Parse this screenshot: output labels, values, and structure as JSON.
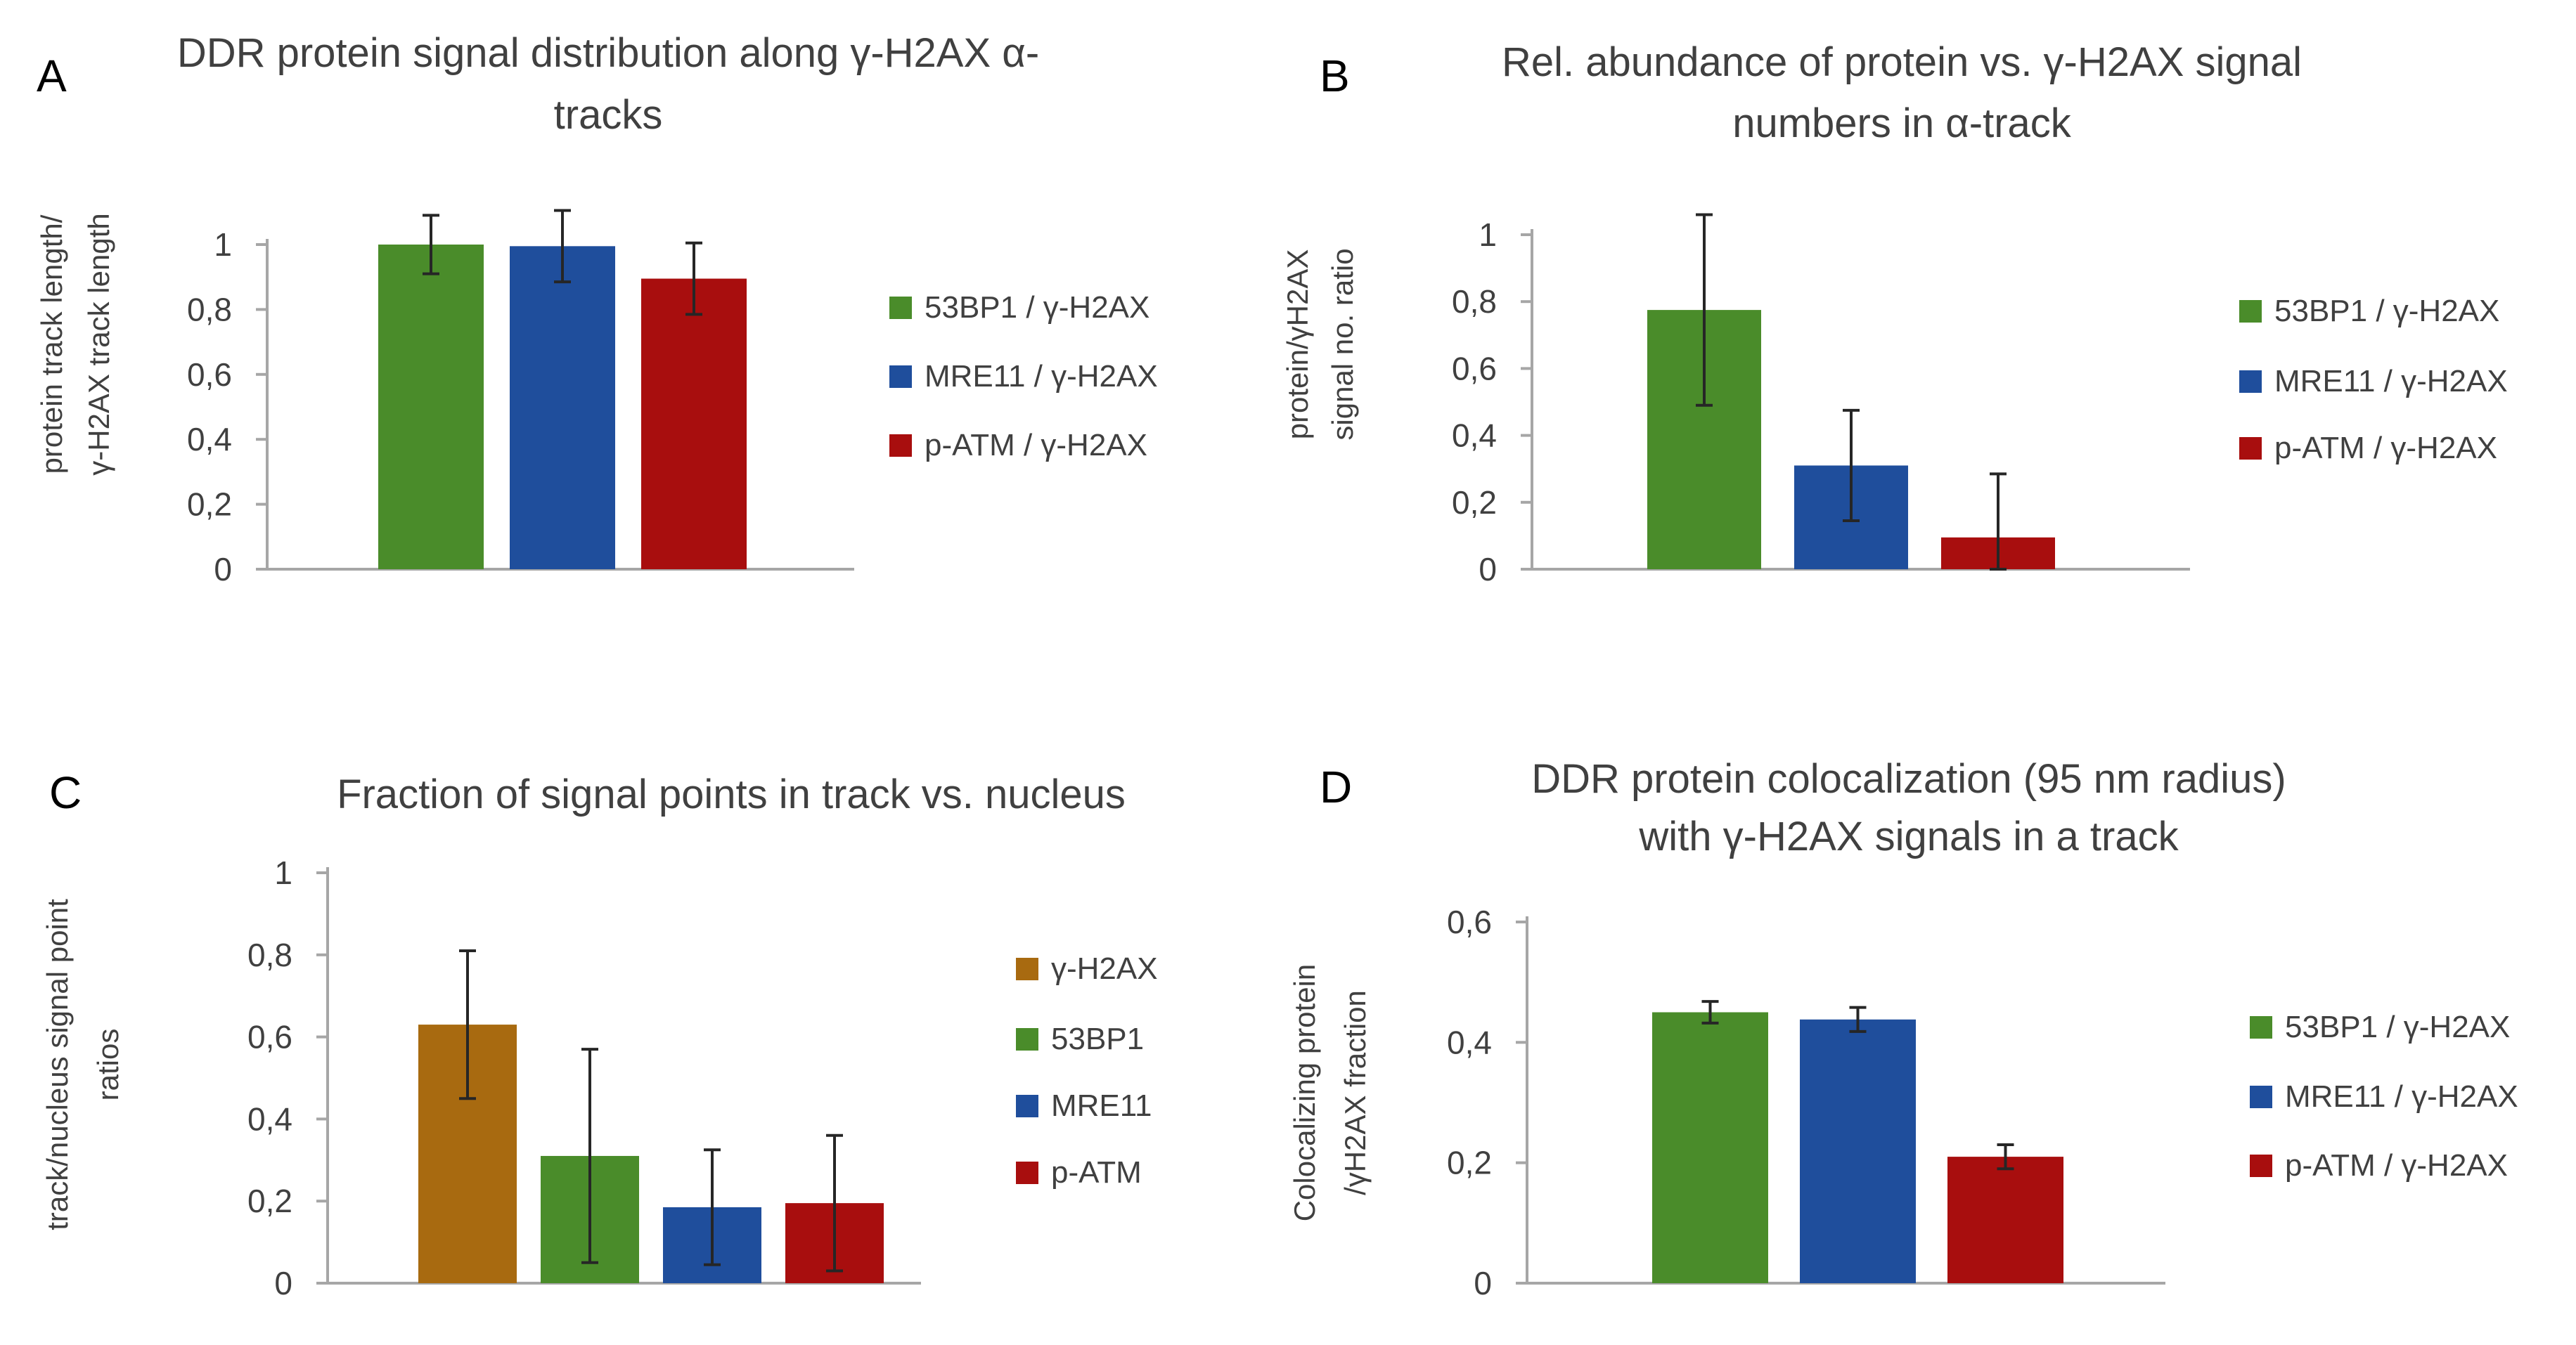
{
  "colors": {
    "green": "#4a8c2a",
    "blue": "#1f4e9c",
    "red": "#a80e0e",
    "ochre": "#a86a10"
  },
  "chart_data": [
    {
      "panel": "A",
      "type": "bar",
      "title_lines": [
        "DDR protein signal distribution along γ-H2AX α-",
        "tracks"
      ],
      "ylabel_lines": [
        "protein track length/",
        "γ-H2AX track length"
      ],
      "ylim": [
        0,
        1
      ],
      "yticks": [
        "0",
        "0,2",
        "0,4",
        "0,6",
        "0,8",
        "1"
      ],
      "yticks_values": [
        0,
        0.2,
        0.4,
        0.6,
        0.8,
        1
      ],
      "legend_position": "right",
      "series": [
        {
          "name": "53BP1 / γ-H2AX",
          "value": 1.0,
          "error": 0.09,
          "color": "#4a8c2a"
        },
        {
          "name": "MRE11 / γ-H2AX",
          "value": 0.995,
          "error": 0.11,
          "color": "#1f4e9c"
        },
        {
          "name": "p-ATM / γ-H2AX",
          "value": 0.895,
          "error": 0.11,
          "color": "#a80e0e"
        }
      ]
    },
    {
      "panel": "B",
      "type": "bar",
      "title_lines": [
        "Rel. abundance of protein vs. γ-H2AX signal",
        "numbers in α-track"
      ],
      "ylabel_lines": [
        "protein/γH2AX",
        "signal no. ratio"
      ],
      "ylim": [
        0,
        1
      ],
      "yticks": [
        "0",
        "0,2",
        "0,4",
        "0,6",
        "0,8",
        "1"
      ],
      "yticks_values": [
        0,
        0.2,
        0.4,
        0.6,
        0.8,
        1
      ],
      "legend_position": "right",
      "series": [
        {
          "name": "53BP1 / γ-H2AX",
          "value": 0.775,
          "error": 0.285,
          "color": "#4a8c2a"
        },
        {
          "name": "MRE11 / γ-H2AX",
          "value": 0.31,
          "error": 0.165,
          "color": "#1f4e9c"
        },
        {
          "name": "p-ATM / γ-H2AX",
          "value": 0.095,
          "error": 0.19,
          "color": "#a80e0e"
        }
      ]
    },
    {
      "panel": "C",
      "type": "bar",
      "title_lines": [
        "Fraction of signal points in track vs. nucleus"
      ],
      "ylabel_lines": [
        "track/nucleus signal point",
        "ratios"
      ],
      "ylim": [
        0,
        1
      ],
      "yticks": [
        "0",
        "0,2",
        "0,4",
        "0,6",
        "0,8",
        "1"
      ],
      "yticks_values": [
        0,
        0.2,
        0.4,
        0.6,
        0.8,
        1
      ],
      "legend_position": "right",
      "series": [
        {
          "name": "γ-H2AX",
          "value": 0.63,
          "error": 0.18,
          "color": "#a86a10"
        },
        {
          "name": "53BP1",
          "value": 0.31,
          "error": 0.26,
          "color": "#4a8c2a"
        },
        {
          "name": "MRE11",
          "value": 0.185,
          "error": 0.14,
          "color": "#1f4e9c"
        },
        {
          "name": "p-ATM",
          "value": 0.195,
          "error": 0.165,
          "color": "#a80e0e"
        }
      ]
    },
    {
      "panel": "D",
      "type": "bar",
      "title_lines": [
        "DDR protein colocalization (95 nm radius)",
        "with γ-H2AX  signals in a track"
      ],
      "ylabel_lines": [
        "Colocalizing protein",
        "/γH2AX fraction"
      ],
      "ylim": [
        0,
        0.6
      ],
      "yticks": [
        "0",
        "0,2",
        "0,4",
        "0,6"
      ],
      "yticks_values": [
        0,
        0.2,
        0.4,
        0.6
      ],
      "legend_position": "right",
      "series": [
        {
          "name": "53BP1 / γ-H2AX",
          "value": 0.45,
          "error": 0.018,
          "color": "#4a8c2a"
        },
        {
          "name": "MRE11 / γ-H2AX",
          "value": 0.438,
          "error": 0.02,
          "color": "#1f4e9c"
        },
        {
          "name": "p-ATM / γ-H2AX",
          "value": 0.21,
          "error": 0.02,
          "color": "#a80e0e"
        }
      ]
    }
  ]
}
